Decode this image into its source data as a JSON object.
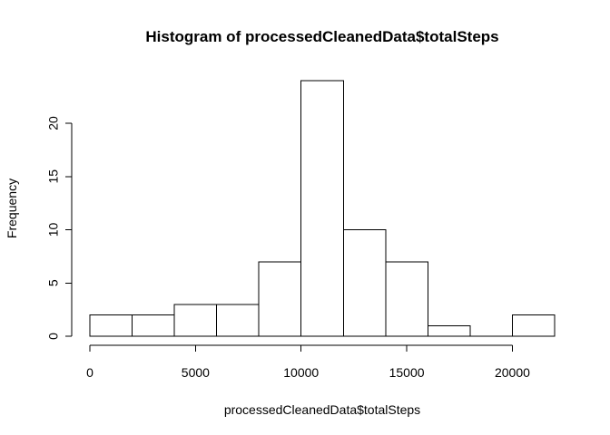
{
  "chart_data": {
    "type": "bar",
    "title": "Histogram of processedCleanedData$totalSteps",
    "xlabel": "processedCleanedData$totalSteps",
    "ylabel": "Frequency",
    "bins": [
      [
        0,
        2000
      ],
      [
        2000,
        4000
      ],
      [
        4000,
        6000
      ],
      [
        6000,
        8000
      ],
      [
        8000,
        10000
      ],
      [
        10000,
        12000
      ],
      [
        12000,
        14000
      ],
      [
        14000,
        16000
      ],
      [
        16000,
        18000
      ],
      [
        18000,
        20000
      ],
      [
        20000,
        22000
      ]
    ],
    "values": [
      2,
      2,
      3,
      3,
      7,
      24,
      10,
      7,
      1,
      0,
      2
    ],
    "x_ticks": [
      0,
      5000,
      10000,
      15000,
      20000
    ],
    "y_ticks": [
      0,
      5,
      10,
      15,
      20
    ],
    "xlim": [
      0,
      22000
    ],
    "ylim": [
      0,
      24
    ],
    "grid": false
  }
}
